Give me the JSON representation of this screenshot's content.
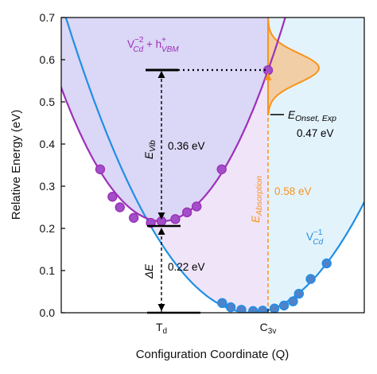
{
  "chart_data": {
    "type": "line",
    "title": "",
    "xlabel": "Configuration Coordinate (Q)",
    "ylabel": "Relative Energy (eV)",
    "ylim": [
      0,
      0.7
    ],
    "yticks": [
      "0.0",
      "0.1",
      "0.2",
      "0.3",
      "0.4",
      "0.5",
      "0.6",
      "0.7"
    ],
    "x_ticks": [
      {
        "label": "T",
        "sub": "d",
        "q": 0
      },
      {
        "label": "C",
        "sub": "3v",
        "q": 1
      }
    ],
    "colors": {
      "upper": "#9b30b8",
      "lower": "#1f8fe6",
      "absorption": "#f7941d",
      "dot_fill_upper": "#a24ec9",
      "dot_fill_lower": "#4f82c9"
    },
    "series": [
      {
        "name": "V_Cd^-2 + h_VBM^+",
        "points": [
          [
            -0.575,
            0.34
          ],
          [
            -0.46,
            0.275
          ],
          [
            -0.39,
            0.25
          ],
          [
            -0.26,
            0.225
          ],
          [
            -0.1,
            0.213
          ],
          [
            0.0,
            0.217
          ],
          [
            0.13,
            0.222
          ],
          [
            0.24,
            0.238
          ],
          [
            0.33,
            0.252
          ],
          [
            0.565,
            0.34
          ],
          [
            1.0,
            0.575
          ]
        ],
        "curve": {
          "minimum_q": 0.0,
          "minimum_e": 0.217
        }
      },
      {
        "name": "V_Cd^-1",
        "points": [
          [
            0.57,
            0.023
          ],
          [
            0.65,
            0.013
          ],
          [
            0.75,
            0.007
          ],
          [
            0.86,
            0.004
          ],
          [
            0.95,
            0.005
          ],
          [
            1.06,
            0.01
          ],
          [
            1.15,
            0.017
          ],
          [
            1.235,
            0.027
          ],
          [
            1.29,
            0.045
          ],
          [
            1.4,
            0.08
          ],
          [
            1.55,
            0.117
          ]
        ],
        "curve": {
          "minimum_q": 0.84,
          "minimum_e": 0.0
        }
      }
    ],
    "absorption_band": {
      "onset_energy": 0.47,
      "peak_energy": 0.58,
      "upper_energy": 0.7
    },
    "annotations": {
      "upper_label": "V",
      "upper_label_sup": "−2",
      "upper_label_sub": "Cd",
      "upper_label_plus": " + h",
      "upper_label_sup2": "+",
      "upper_label_sub2": "VBM",
      "lower_label": "V",
      "lower_label_sup": "−1",
      "lower_label_sub": "Cd",
      "evib_symbol": "E",
      "evib_sub": "Vib",
      "evib_value": "0.36 eV",
      "delta_e_symbol": "ΔE",
      "delta_e_value": "0.22 eV",
      "eabs_symbol": "E",
      "eabs_sub": "Absorption",
      "eabs_value": "0.58 eV",
      "eonset_symbol": "E",
      "eonset_sub": "Onset, Exp",
      "eonset_value": "0.47 eV"
    }
  }
}
